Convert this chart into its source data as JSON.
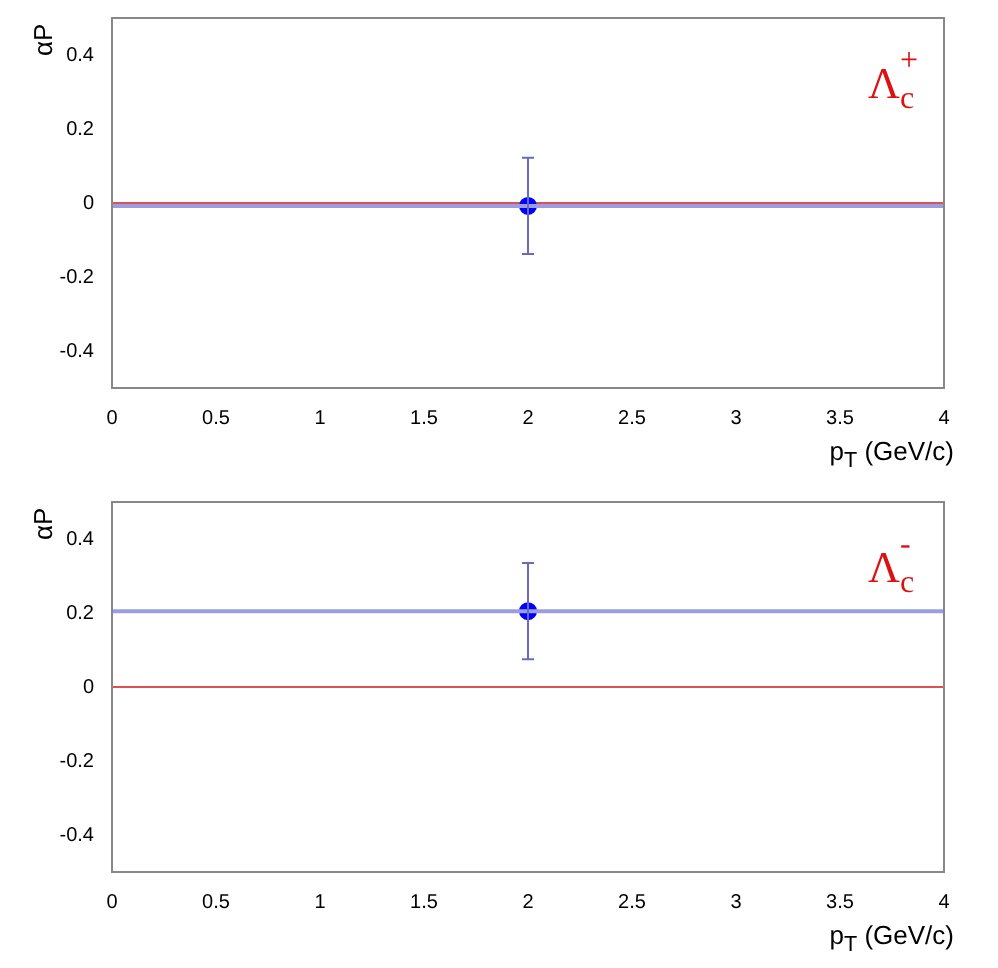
{
  "chart_data": [
    {
      "type": "scatter",
      "xlabel": "p$_{T}$ (GeV/c)",
      "ylabel": "αP",
      "annotations": [
        "Λ$_{c}$$^{+}$"
      ],
      "xlim": [
        0,
        4
      ],
      "xticks": [
        0,
        0.5,
        1,
        1.5,
        2,
        2.5,
        3,
        3.5,
        4
      ],
      "ylim": [
        -0.5,
        0.5
      ],
      "yticks": [
        -0.4,
        -0.2,
        0,
        0.2,
        0.4
      ],
      "grid": false,
      "legend": false,
      "marker": "circle",
      "ref_lines": [
        {
          "axis": "y",
          "value": 0,
          "color": "#e05050"
        }
      ],
      "series": [
        {
          "type": "line",
          "x": [
            0,
            4
          ],
          "values": [
            -0.008,
            -0.008
          ],
          "color": "#9a9ee0",
          "marker": "none"
        },
        {
          "type": "scatter",
          "x": [
            2
          ],
          "values": [
            -0.008
          ],
          "errors": [
            0.13
          ],
          "color": "#0000ff"
        }
      ]
    },
    {
      "type": "scatter",
      "xlabel": "p$_{T}$ (GeV/c)",
      "ylabel": "αP",
      "annotations": [
        "Λ$_{c}$$^{-}$"
      ],
      "xlim": [
        0,
        4
      ],
      "xticks": [
        0,
        0.5,
        1,
        1.5,
        2,
        2.5,
        3,
        3.5,
        4
      ],
      "ylim": [
        -0.5,
        0.5
      ],
      "yticks": [
        -0.4,
        -0.2,
        0,
        0.2,
        0.4
      ],
      "grid": false,
      "legend": false,
      "marker": "circle",
      "ref_lines": [
        {
          "axis": "y",
          "value": 0,
          "color": "#e05050"
        }
      ],
      "series": [
        {
          "type": "line",
          "x": [
            0,
            4
          ],
          "values": [
            0.205,
            0.205
          ],
          "color": "#9a9ee0",
          "marker": "none"
        },
        {
          "type": "scatter",
          "x": [
            2
          ],
          "values": [
            0.205
          ],
          "errors": [
            0.13
          ],
          "color": "#0000ff"
        }
      ]
    }
  ]
}
